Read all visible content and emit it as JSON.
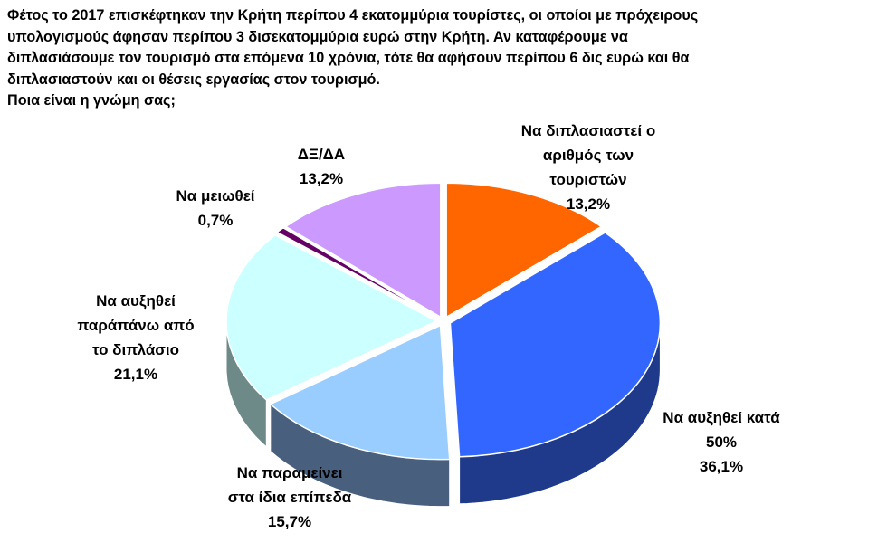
{
  "question": {
    "lines": [
      "Φέτος το 2017 επισκέφτηκαν την Κρήτη περίπου 4 εκατομμύρια τουρίστες, οι οποίοι με πρόχειρους",
      "υπολογισμούς άφησαν περίπου 3 δισεκατομμύρια ευρώ στην Κρήτη. Αν καταφέρουμε να",
      "διπλασιάσουμε τον τουρισμό στα επόμενα 10 χρόνια, τότε θα αφήσουν περίπου 6 δις ευρώ και θα",
      "διπλασιαστούν και οι θέσεις εργασίας στον τουρισμό."
    ],
    "prompt": "Ποια είναι η γνώμη σας;"
  },
  "chart_data": {
    "type": "pie",
    "three_d": true,
    "legend": "none",
    "slices": [
      {
        "label_lines": [
          "Να διπλασιαστεί ο",
          "αριθμός των",
          "τουριστών"
        ],
        "value": 13.2,
        "value_label": "13,2%",
        "color": "#FF6600",
        "side_color": "#B34700"
      },
      {
        "label_lines": [
          "Να αυξηθεί κατά",
          "50%"
        ],
        "value": 36.1,
        "value_label": "36,1%",
        "color": "#3366FF",
        "side_color": "#1F3A8A"
      },
      {
        "label_lines": [
          "Να παραμείνει",
          "στα ίδια επίπεδα"
        ],
        "value": 15.7,
        "value_label": "15,7%",
        "color": "#99CCFF",
        "side_color": "#48607E"
      },
      {
        "label_lines": [
          "Να αυξηθεί",
          "παράπάνω από",
          "το διπλάσιο"
        ],
        "value": 21.1,
        "value_label": "21,1%",
        "color": "#CCFFFF",
        "side_color": "#6E8A88"
      },
      {
        "label_lines": [
          "Να μειωθεί"
        ],
        "value": 0.7,
        "value_label": "0,7%",
        "color": "#660066",
        "side_color": "#330033"
      },
      {
        "label_lines": [
          "ΔΞ/ΔΑ"
        ],
        "value": 13.2,
        "value_label": "13,2%",
        "color": "#CC99FF",
        "side_color": "#7A5C99"
      }
    ]
  }
}
